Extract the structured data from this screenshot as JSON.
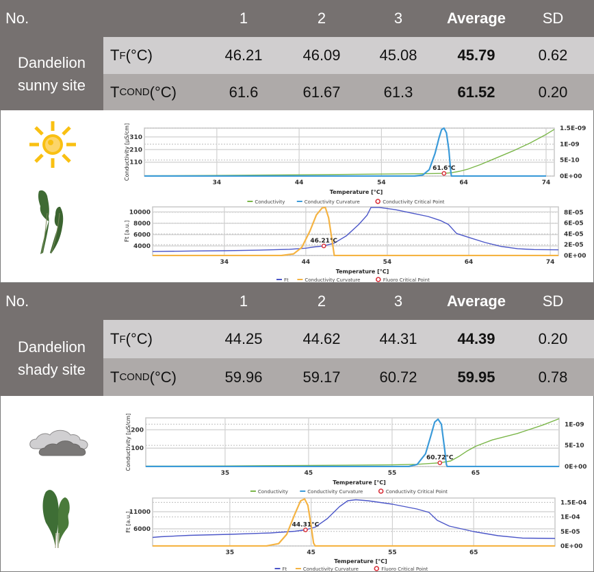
{
  "colors": {
    "header_bg": "#767170",
    "row_tf_bg": "#d0cecf",
    "row_cond_bg": "#aeaaa9",
    "conductivity": "#7ab648",
    "conductivity_curvature_blue": "#3a9ad9",
    "ft": "#4a55c8",
    "curvature_orange": "#f5b342",
    "critical_point": "#d9303a",
    "sun": "#f9c012",
    "cloud_light": "#d0cfd1",
    "cloud_dark": "#7a7877"
  },
  "tables": [
    {
      "header": {
        "no": "No.",
        "col1": "1",
        "col2": "2",
        "col3": "3",
        "average": "Average",
        "sd": "SD"
      },
      "sample_line1": "Dandelion",
      "sample_line2": "sunny site",
      "rows": [
        {
          "label_main": "T",
          "label_sub": "F",
          "label_unit": " (°C)",
          "v1": "46.21",
          "v2": "46.09",
          "v3": "45.08",
          "average": "45.79",
          "sd": "0.62"
        },
        {
          "label_main": "T",
          "label_sub": "COND",
          "label_unit": " (°C)",
          "v1": "61.6",
          "v2": "61.67",
          "v3": "61.3",
          "average": "61.52",
          "sd": "0.20"
        }
      ],
      "icon": "sun-icon",
      "leaf": "dandelion-leaf-sunny"
    },
    {
      "header": {
        "no": "No.",
        "col1": "1",
        "col2": "2",
        "col3": "3",
        "average": "Average",
        "sd": "SD"
      },
      "sample_line1": "Dandelion",
      "sample_line2": "shady site",
      "rows": [
        {
          "label_main": "T",
          "label_sub": "F",
          "label_unit": " (°C)",
          "v1": "44.25",
          "v2": "44.62",
          "v3": "44.31",
          "average": "44.39",
          "sd": "0.20"
        },
        {
          "label_main": "T",
          "label_sub": "COND",
          "label_unit": " (°C)",
          "v1": "59.96",
          "v2": "59.17",
          "v3": "60.72",
          "average": "59.95",
          "sd": "0.78"
        }
      ],
      "icon": "cloud-icon",
      "leaf": "dandelion-leaf-shady"
    }
  ],
  "chart_data": [
    {
      "id": "sunny-conductivity",
      "type": "line",
      "xlabel": "Temperature [°C]",
      "ylabel": "Conductivity [µS/cm]",
      "xlim": [
        25.2,
        75
      ],
      "ylim": [
        0,
        380
      ],
      "y2lim": [
        0,
        1.5e-09
      ],
      "xticks": [
        "34",
        "44",
        "54",
        "64",
        "74"
      ],
      "xtick_values": [
        34,
        44,
        54,
        64,
        74
      ],
      "yticks": [
        "110",
        "210",
        "310"
      ],
      "ytick_values": [
        110,
        210,
        310
      ],
      "y2ticks": [
        "0E+00",
        "5E-10",
        "1E-09",
        "1.5E-09"
      ],
      "y2tick_values": [
        0,
        5e-10,
        1e-09,
        1.5e-09
      ],
      "grid": true,
      "legend": [
        "Conductivity",
        "Conductivity Curvature",
        "Conductivity Critical Point"
      ],
      "legend_colors": [
        "#7ab648",
        "#3a9ad9",
        "#d9303a"
      ],
      "series": [
        {
          "name": "Conductivity",
          "axis": "y",
          "color": "#7ab648",
          "x": [
            25.2,
            34,
            44,
            54,
            58,
            61.6,
            62.5,
            63.5,
            64.5,
            66,
            68,
            70,
            72,
            74,
            75
          ],
          "y": [
            2,
            5,
            10,
            16,
            18,
            21,
            26,
            38,
            55,
            90,
            145,
            200,
            260,
            330,
            370
          ]
        },
        {
          "name": "Conductivity Curvature",
          "axis": "y2",
          "color": "#3a9ad9",
          "x": [
            25.2,
            58,
            59,
            59.8,
            60.5,
            61,
            61.3,
            61.6,
            61.9,
            62.2,
            62.4,
            62.5,
            74
          ],
          "y": [
            0,
            0,
            3e-11,
            2e-10,
            7e-10,
            1.2e-09,
            1.45e-09,
            1.5e-09,
            1.35e-09,
            8e-10,
            2e-10,
            0,
            0
          ]
        }
      ],
      "critical_point": {
        "x": 61.6,
        "y": 21,
        "label": "61.6°C"
      }
    },
    {
      "id": "sunny-fluorescence",
      "type": "line",
      "xlabel": "Temperature [°C]",
      "ylabel": "Ft [a.u.]",
      "xlim": [
        25.2,
        75
      ],
      "ylim": [
        2300,
        10900
      ],
      "y2lim": [
        0,
        9e-05
      ],
      "xticks": [
        "34",
        "44",
        "54",
        "64",
        "74"
      ],
      "xtick_values": [
        34,
        44,
        54,
        64,
        74
      ],
      "yticks": [
        "4000",
        "6000",
        "8000",
        "10000"
      ],
      "ytick_values": [
        4000,
        6000,
        8000,
        10000
      ],
      "y2ticks": [
        "0E+00",
        "2E-05",
        "4E-05",
        "6E-05",
        "8E-05"
      ],
      "y2tick_values": [
        0,
        2e-05,
        4e-05,
        6e-05,
        8e-05
      ],
      "grid": true,
      "legend": [
        "Ft",
        "Conductivity Curvature",
        "Fluoro Critical Point"
      ],
      "legend_colors": [
        "#4a55c8",
        "#f5b342",
        "#d9303a"
      ],
      "series": [
        {
          "name": "Ft",
          "axis": "y",
          "color": "#4a55c8",
          "x": [
            25.2,
            30,
            34,
            38,
            42,
            44,
            45,
            46.21,
            47.5,
            49,
            50.5,
            51.5,
            52,
            53,
            55,
            57,
            59,
            60.5,
            61.5,
            62.5,
            64,
            66,
            68,
            70,
            72,
            75
          ],
          "y": [
            3000,
            3100,
            3150,
            3250,
            3400,
            3600,
            3800,
            4000,
            4500,
            5800,
            7800,
            9400,
            10800,
            10800,
            10400,
            9800,
            9200,
            8500,
            7800,
            6200,
            5500,
            4600,
            3900,
            3500,
            3350,
            3300
          ]
        },
        {
          "name": "Conductivity Curvature",
          "axis": "y2",
          "color": "#f5b342",
          "x": [
            25.2,
            41,
            42.5,
            43.5,
            44.5,
            45.3,
            46,
            46.4,
            46.8,
            47.2,
            47.5,
            75
          ],
          "y": [
            0,
            0,
            3e-06,
            1.5e-05,
            4.5e-05,
            7.5e-05,
            8.8e-05,
            8.9e-05,
            7e-05,
            3e-05,
            0,
            0
          ]
        }
      ],
      "critical_point": {
        "x": 46.21,
        "y": 4000,
        "label": "46.21°C"
      }
    },
    {
      "id": "shady-conductivity",
      "type": "line",
      "xlabel": "Temperature [°C]",
      "ylabel": "Conductivity [µS/cm]",
      "xlim": [
        25.5,
        75
      ],
      "ylim": [
        0,
        265
      ],
      "y2lim": [
        0,
        1.15e-09
      ],
      "xticks": [
        "35",
        "45",
        "55",
        "65"
      ],
      "xtick_values": [
        35,
        45,
        55,
        65
      ],
      "yticks": [
        "100",
        "200"
      ],
      "ytick_values": [
        100,
        200
      ],
      "y2ticks": [
        "0E+00",
        "5E-10",
        "1E-09"
      ],
      "y2tick_values": [
        0,
        5e-10,
        1e-09
      ],
      "grid": true,
      "legend": [
        "Conductivity",
        "Conductivity Curvature",
        "Conductivity Critical Point"
      ],
      "legend_colors": [
        "#7ab648",
        "#3a9ad9",
        "#d9303a"
      ],
      "series": [
        {
          "name": "Conductivity",
          "axis": "y",
          "color": "#7ab648",
          "x": [
            25.5,
            35,
            45,
            55,
            58,
            60.72,
            62,
            63,
            64,
            65,
            67,
            70,
            73,
            75
          ],
          "y": [
            2,
            3,
            6,
            9,
            12,
            20,
            30,
            55,
            85,
            110,
            145,
            180,
            225,
            260
          ]
        },
        {
          "name": "Conductivity Curvature",
          "axis": "y2",
          "color": "#3a9ad9",
          "x": [
            25.5,
            57,
            58,
            59,
            59.6,
            60.1,
            60.5,
            60.9,
            61.3,
            61.5,
            61.6,
            75
          ],
          "y": [
            0,
            0,
            5e-11,
            3e-10,
            7e-10,
            1.05e-09,
            1.12e-09,
            1e-09,
            4e-10,
            5e-11,
            0,
            0
          ]
        }
      ],
      "critical_point": {
        "x": 60.72,
        "y": 20,
        "label": "60.72°C"
      }
    },
    {
      "id": "shady-fluorescence",
      "type": "line",
      "xlabel": "Temperature [°C]",
      "ylabel": "Ft [a.u.]",
      "xlim": [
        25.5,
        75
      ],
      "ylim": [
        1000,
        15000
      ],
      "y2lim": [
        0,
        0.000165
      ],
      "xticks": [
        "35",
        "45",
        "55",
        "65"
      ],
      "xtick_values": [
        35,
        45,
        55,
        65
      ],
      "yticks": [
        "6000",
        "11000"
      ],
      "ytick_values": [
        6000,
        11000
      ],
      "y2ticks": [
        "0E+00",
        "5E-05",
        "1E-04",
        "1.5E-04"
      ],
      "y2tick_values": [
        0,
        5e-05,
        0.0001,
        0.00015
      ],
      "grid": true,
      "legend": [
        "Ft",
        "Conductivity Curvature",
        "Fluoro Critical Point"
      ],
      "legend_colors": [
        "#4a55c8",
        "#f5b342",
        "#d9303a"
      ],
      "series": [
        {
          "name": "Ft",
          "axis": "y",
          "color": "#4a55c8",
          "x": [
            25.5,
            26.5,
            30,
            35,
            40,
            43,
            44.31,
            45.5,
            47,
            48.5,
            49.5,
            50.5,
            52,
            55,
            58,
            59.5,
            60.5,
            62,
            65,
            68,
            71,
            75
          ],
          "y": [
            3500,
            3700,
            4100,
            4400,
            4800,
            5300,
            5700,
            6500,
            9000,
            12500,
            14200,
            14500,
            14200,
            13200,
            11800,
            10800,
            8500,
            6800,
            5200,
            4000,
            3300,
            3200
          ]
        },
        {
          "name": "Conductivity Curvature",
          "axis": "y2",
          "color": "#f5b342",
          "x": [
            25.5,
            39.5,
            41,
            42,
            43,
            43.7,
            44.2,
            44.6,
            45,
            45.3,
            45.5,
            75
          ],
          "y": [
            0,
            0,
            8e-06,
            4e-05,
            0.00011,
            0.000155,
            0.000162,
            0.00014,
            7e-05,
            1e-05,
            0,
            0
          ]
        }
      ],
      "critical_point": {
        "x": 44.31,
        "y": 5700,
        "label": "44.31°C"
      }
    }
  ]
}
